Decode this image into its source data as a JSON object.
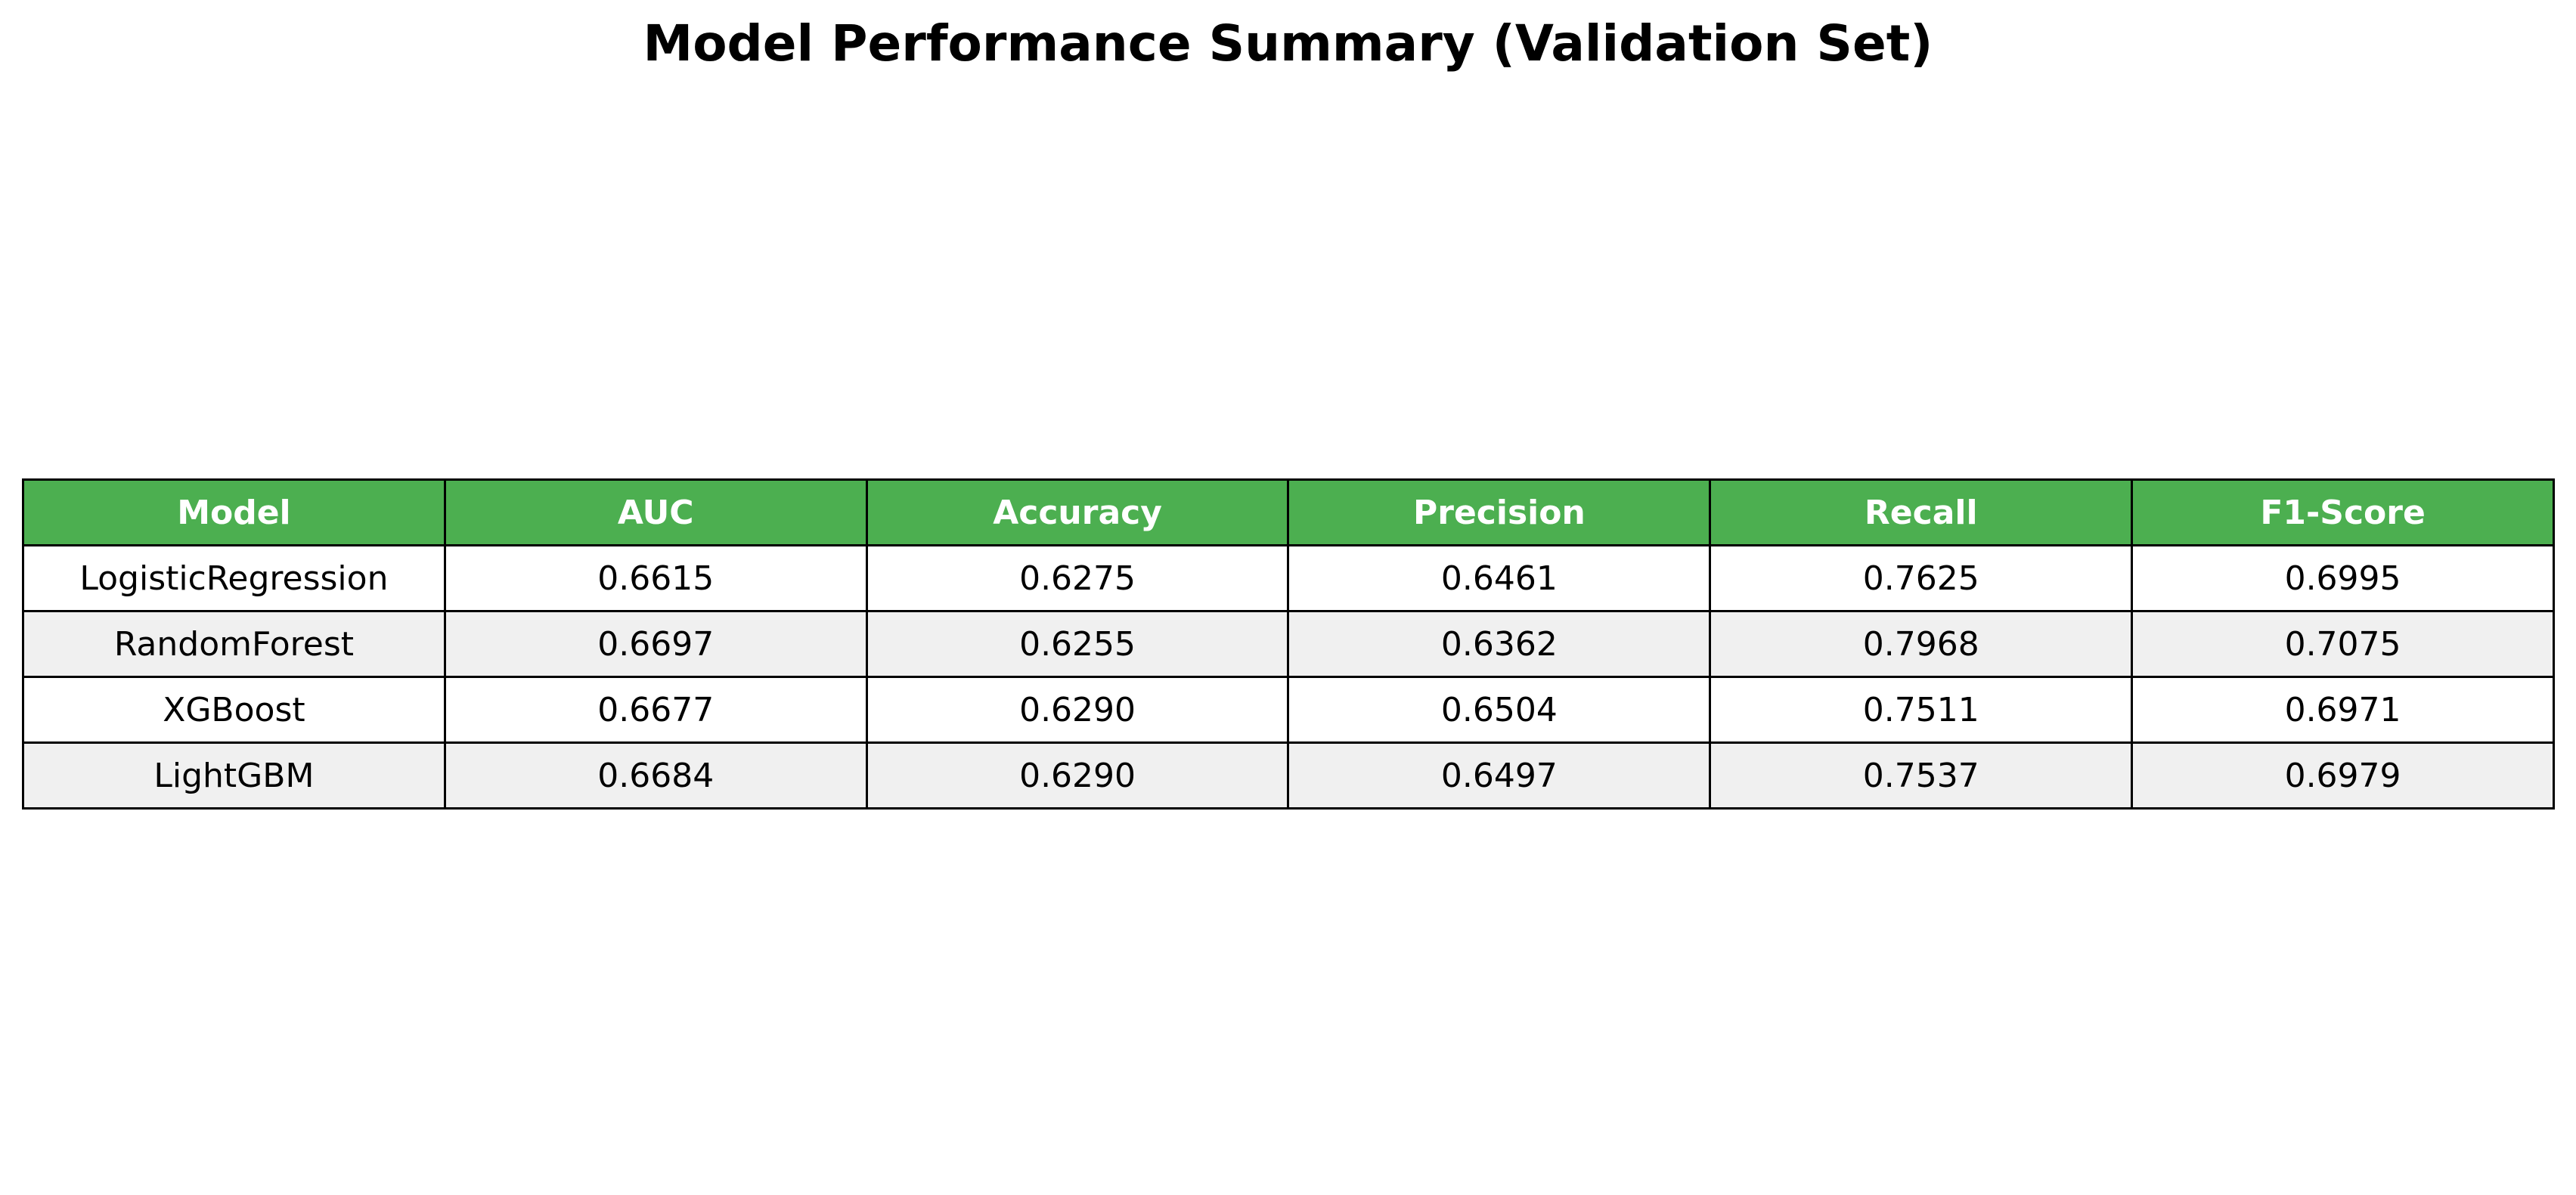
{
  "chart_data": {
    "type": "table",
    "title": "Model Performance Summary (Validation Set)",
    "columns": [
      "Model",
      "AUC",
      "Accuracy",
      "Precision",
      "Recall",
      "F1-Score"
    ],
    "rows": [
      [
        "LogisticRegression",
        "0.6615",
        "0.6275",
        "0.6461",
        "0.7625",
        "0.6995"
      ],
      [
        "RandomForest",
        "0.6697",
        "0.6255",
        "0.6362",
        "0.7968",
        "0.7075"
      ],
      [
        "XGBoost",
        "0.6677",
        "0.6290",
        "0.6504",
        "0.7511",
        "0.6971"
      ],
      [
        "LightGBM",
        "0.6684",
        "0.6290",
        "0.6497",
        "0.7537",
        "0.6979"
      ]
    ]
  },
  "colors": {
    "header_background": "#4caf50",
    "header_text": "#ffffff",
    "row_alternate": "#f0f0f0",
    "row_default": "#ffffff",
    "border": "#000000"
  }
}
